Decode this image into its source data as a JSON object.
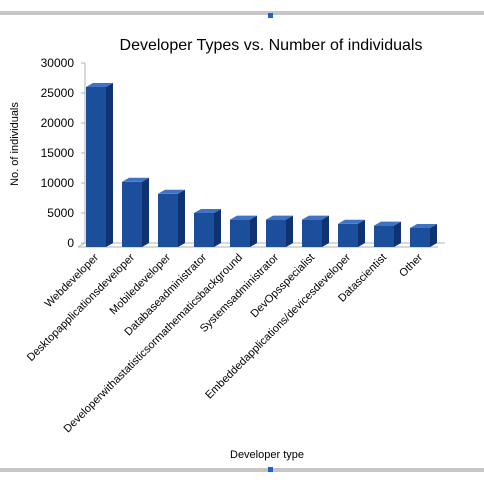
{
  "chart_data": {
    "type": "bar",
    "style": "3d-columns",
    "title": "Developer Types vs. Number of individuals",
    "xlabel": "Developer type",
    "ylabel": "No. of individuals",
    "ylim": [
      0,
      30000
    ],
    "yticks": [
      0,
      5000,
      10000,
      15000,
      20000,
      25000,
      30000
    ],
    "grid": false,
    "legend": "none",
    "categories": [
      "Webdeveloper",
      "Desktopapplicationsdeveloper",
      "Mobiledeveloper",
      "Databaseadministrator",
      "Developerwithastatisticsormathematicsbackground",
      "Systemsadministrator",
      "DevOpsspecialist",
      "Embeddedapplications/devicesdeveloper",
      "Datascientist",
      "Other"
    ],
    "values": [
      26000,
      10200,
      8200,
      5000,
      3900,
      3900,
      3900,
      3200,
      2900,
      2500
    ],
    "colors": {
      "bar_front": "#1b4f9b",
      "bar_side": "#0f3270",
      "bar_top": "#3f74c4",
      "axis": "#b3b3b3",
      "text": "#000000"
    }
  }
}
